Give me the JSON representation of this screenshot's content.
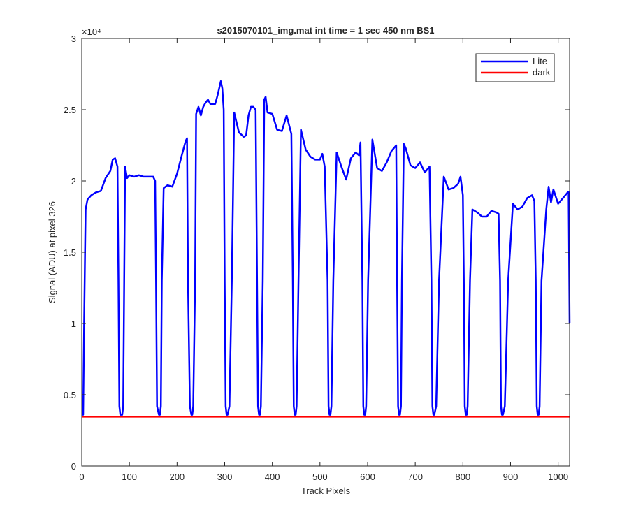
{
  "chart_data": {
    "type": "line",
    "title": "s2015070101_img.mat int time = 1 sec  450 nm BS1",
    "xlabel": "Track Pixels",
    "ylabel": "Signal (ADU) at pixel 326",
    "y_exponent_label": "×10⁴",
    "xlim": [
      0,
      1024
    ],
    "ylim": [
      0,
      30000
    ],
    "x_ticks": [
      0,
      100,
      200,
      300,
      400,
      500,
      600,
      700,
      800,
      900,
      1000
    ],
    "y_ticks": [
      0,
      5000,
      10000,
      15000,
      20000,
      25000,
      30000
    ],
    "y_tick_labels": [
      "0",
      "0.5",
      "1",
      "1.5",
      "2",
      "2.5",
      "3"
    ],
    "grid": false,
    "legend": {
      "position": "top-right",
      "entries": [
        "Lite",
        "dark"
      ]
    },
    "series": [
      {
        "name": "Lite",
        "color": "#0000ff",
        "x": [
          0,
          3,
          5,
          8,
          12,
          20,
          30,
          40,
          50,
          60,
          65,
          70,
          75,
          77,
          79,
          81,
          85,
          87,
          89,
          91,
          95,
          100,
          110,
          120,
          130,
          140,
          150,
          154,
          156,
          158,
          162,
          164,
          166,
          168,
          172,
          180,
          190,
          200,
          210,
          218,
          221,
          223,
          227,
          230,
          232,
          234,
          238,
          240,
          245,
          250,
          255,
          260,
          265,
          270,
          280,
          285,
          292,
          295,
          298,
          300,
          302,
          304,
          306,
          310,
          315,
          320,
          330,
          340,
          345,
          350,
          355,
          360,
          365,
          368,
          370,
          372,
          374,
          376,
          380,
          383,
          386,
          390,
          400,
          410,
          420,
          430,
          440,
          443,
          445,
          447,
          449,
          451,
          455,
          460,
          470,
          480,
          490,
          500,
          505,
          510,
          516,
          518,
          520,
          522,
          524,
          528,
          535,
          545,
          555,
          565,
          575,
          582,
          585,
          589,
          591,
          593,
          595,
          597,
          601,
          610,
          620,
          630,
          640,
          650,
          660,
          662,
          664,
          666,
          668,
          670,
          672,
          676,
          680,
          690,
          700,
          710,
          720,
          730,
          734,
          736,
          738,
          740,
          744,
          750,
          760,
          770,
          780,
          790,
          795,
          800,
          802,
          804,
          806,
          808,
          810,
          815,
          820,
          830,
          840,
          850,
          860,
          870,
          875,
          878,
          880,
          882,
          884,
          888,
          895,
          905,
          915,
          925,
          935,
          945,
          950,
          953,
          955,
          957,
          959,
          961,
          965,
          975,
          980,
          985,
          990,
          1000,
          1010,
          1020,
          1022,
          1024
        ],
        "y": [
          3600,
          3600,
          10000,
          18000,
          18700,
          19000,
          19200,
          19300,
          20200,
          20700,
          21500,
          21600,
          21000,
          13000,
          4200,
          3600,
          3600,
          4200,
          13000,
          21000,
          20200,
          20400,
          20300,
          20400,
          20300,
          20300,
          20300,
          20000,
          13000,
          4200,
          3600,
          3600,
          4200,
          13000,
          19500,
          19700,
          19600,
          20500,
          21800,
          22800,
          23000,
          13000,
          4200,
          3600,
          3600,
          4200,
          13000,
          24700,
          25200,
          24600,
          25200,
          25500,
          25700,
          25400,
          25400,
          26000,
          27000,
          26500,
          25000,
          13000,
          4200,
          3600,
          3600,
          4200,
          13000,
          24800,
          23400,
          23100,
          23200,
          24600,
          25200,
          25200,
          25000,
          13000,
          4200,
          3600,
          3600,
          4200,
          13000,
          25700,
          25900,
          24800,
          24700,
          23600,
          23500,
          24600,
          23300,
          13000,
          4200,
          3600,
          3600,
          4200,
          13000,
          23600,
          22200,
          21700,
          21500,
          21500,
          21900,
          21000,
          13000,
          4200,
          3600,
          3600,
          4200,
          13000,
          22000,
          21000,
          20100,
          21600,
          22000,
          21800,
          22700,
          13000,
          4200,
          3600,
          3600,
          4200,
          13000,
          22900,
          20900,
          20700,
          21300,
          22100,
          22500,
          13000,
          4200,
          3600,
          3600,
          4200,
          13000,
          22600,
          22300,
          21100,
          20900,
          21300,
          20600,
          21000,
          13000,
          4200,
          3600,
          3600,
          4200,
          13000,
          20300,
          19400,
          19500,
          19800,
          20300,
          19000,
          13000,
          4200,
          3600,
          3600,
          4200,
          13000,
          18000,
          17800,
          17500,
          17500,
          17900,
          17800,
          17700,
          13000,
          4200,
          3600,
          3600,
          4200,
          13000,
          18400,
          18000,
          18200,
          18800,
          19000,
          18600,
          13000,
          4200,
          3600,
          3600,
          4200,
          13000,
          18000,
          19600,
          18500,
          19400,
          18400,
          18800,
          19200,
          19200,
          10000
        ]
      },
      {
        "name": "dark",
        "color": "#ff0000",
        "x": [
          0,
          1024
        ],
        "y": [
          3450,
          3450
        ]
      }
    ]
  }
}
